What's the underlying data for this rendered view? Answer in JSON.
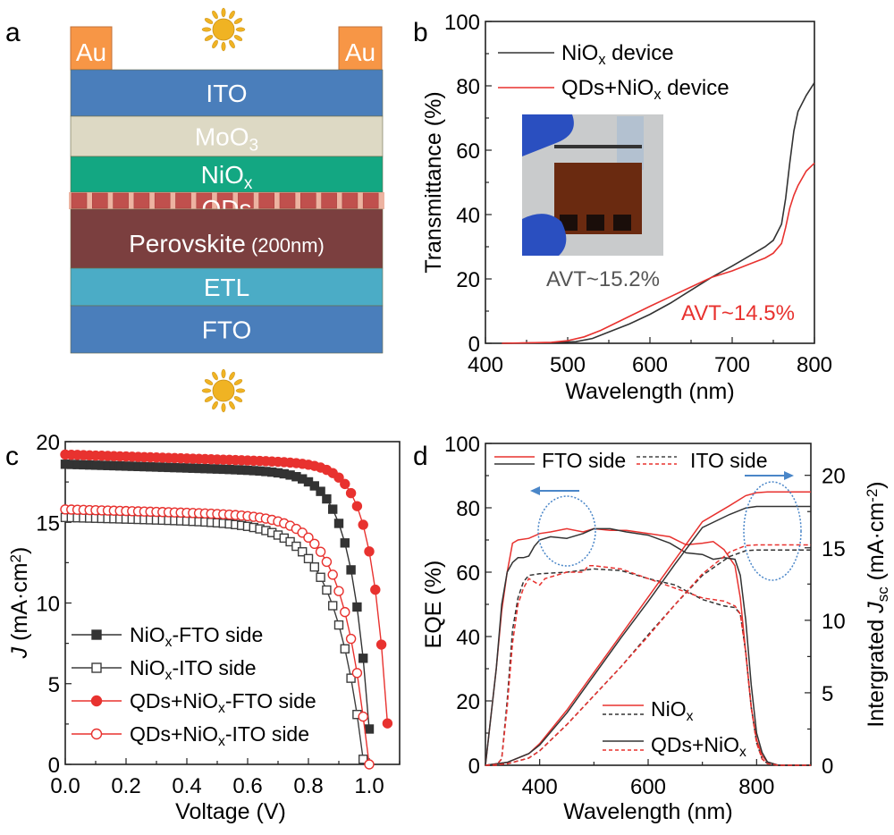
{
  "panel_labels": {
    "a": "a",
    "b": "b",
    "c": "c",
    "d": "d"
  },
  "schematic": {
    "electrode_label": "Au",
    "layers": [
      {
        "name": "ITO",
        "sub": "",
        "color": "#4a7ebb"
      },
      {
        "name": "MoO",
        "sub": "3",
        "color": "#ddd9c4"
      },
      {
        "name": "NiO",
        "sub": "x",
        "color": "#13a782"
      },
      {
        "name": "QDs",
        "sub": "",
        "color": "#c0504d"
      },
      {
        "name": "Perovskite",
        "suffix": "(200nm)",
        "color": "#7b3f3f"
      },
      {
        "name": "ETL",
        "sub": "",
        "color": "#4bacc6"
      },
      {
        "name": "FTO",
        "sub": "",
        "color": "#4a7ebb"
      }
    ],
    "electrode_color": "#f79646",
    "sun_color": "#f0b323"
  },
  "chart_data": [
    {
      "id": "b",
      "type": "line",
      "title": "",
      "xlabel": "Wavelength (nm)",
      "ylabel": "Transmittance (%)",
      "xlim": [
        400,
        800
      ],
      "ylim": [
        0,
        100
      ],
      "xticks": [
        400,
        500,
        600,
        700,
        800
      ],
      "yticks": [
        0,
        20,
        40,
        60,
        80,
        100
      ],
      "grid": false,
      "legend": {
        "placement": "top-left",
        "entries": [
          {
            "label": "NiO",
            "sub": "x",
            "suffix": " device",
            "color": "#333333"
          },
          {
            "label": "QDs+NiO",
            "sub": "x",
            "suffix": " device",
            "color": "#e8322f"
          }
        ]
      },
      "annotations": [
        {
          "text": "AVT~15.2%",
          "color": "#555555"
        },
        {
          "text": "AVT~14.5%",
          "color": "#e8322f"
        }
      ],
      "inset": "photo of semitransparent device held by blue-gloved fingers",
      "series": [
        {
          "name": "NiOx device",
          "color": "#333333",
          "x": [
            420,
            480,
            510,
            530,
            550,
            575,
            600,
            625,
            650,
            675,
            700,
            720,
            740,
            750,
            760,
            765,
            770,
            775,
            780,
            790,
            800
          ],
          "y": [
            0,
            0.2,
            0.5,
            1.5,
            3.5,
            6,
            9,
            12.5,
            16.5,
            20.5,
            24,
            27,
            30,
            32,
            37,
            45,
            56,
            66,
            72,
            77,
            81
          ]
        },
        {
          "name": "QDs+NiOx device",
          "color": "#e8322f",
          "x": [
            420,
            480,
            500,
            520,
            540,
            560,
            580,
            600,
            625,
            650,
            675,
            700,
            720,
            740,
            750,
            760,
            765,
            770,
            775,
            780,
            790,
            800
          ],
          "y": [
            0,
            0.3,
            0.8,
            2,
            4,
            6.5,
            9,
            11.5,
            14.5,
            17.5,
            20.5,
            22.5,
            24.5,
            26.5,
            28,
            31,
            36,
            42,
            46,
            49,
            53.5,
            56
          ]
        }
      ]
    },
    {
      "id": "c",
      "type": "line",
      "title": "",
      "xlabel": "Voltage (V)",
      "ylabel": "J (mA·cm²)",
      "ylabel_parts": {
        "italic": "J",
        "rest": " (mA·cm",
        "sup": "2",
        "end": ")"
      },
      "xlim": [
        0,
        1.1
      ],
      "ylim": [
        0,
        20
      ],
      "xticks": [
        0.0,
        0.2,
        0.4,
        0.6,
        0.8,
        1.0
      ],
      "yticks": [
        0,
        5,
        10,
        15,
        20
      ],
      "grid": false,
      "legend": {
        "placement": "bottom-left"
      },
      "series": [
        {
          "name": "NiOx-FTO side",
          "label": "NiO",
          "sub": "x",
          "suffix": "-FTO side",
          "color": "#333333",
          "marker": "square-filled",
          "jsc": 18.6,
          "voc": 1.01,
          "knee": 0.72,
          "sharp": 5.5
        },
        {
          "name": "NiOx-ITO side",
          "label": "NiO",
          "sub": "x",
          "suffix": "-ITO side",
          "color": "#3d3d3d",
          "marker": "square-open",
          "jsc": 15.3,
          "voc": 0.985,
          "knee": 0.6,
          "sharp": 4.6
        },
        {
          "name": "QDs+NiOx-FTO side",
          "label": "QDs+NiO",
          "sub": "x",
          "suffix": "-FTO side",
          "color": "#e8322f",
          "marker": "circle-filled",
          "jsc": 19.2,
          "voc": 1.07,
          "knee": 0.8,
          "sharp": 5.8
        },
        {
          "name": "QDs+NiOx-ITO side",
          "label": "QDs+NiO",
          "sub": "x",
          "suffix": "-ITO side",
          "color": "#e8322f",
          "marker": "circle-open",
          "jsc": 15.8,
          "voc": 1.0,
          "knee": 0.66,
          "sharp": 4.8
        }
      ]
    },
    {
      "id": "d",
      "type": "line",
      "title": "",
      "xlabel": "Wavelength (nm)",
      "ylabel": "EQE (%)",
      "y2label_parts": {
        "pre": "Intergrated ",
        "italic": "J",
        "sub": "sc",
        "rest": " (mA·cm",
        "sup": "-2",
        "end": ")"
      },
      "xlim": [
        300,
        900
      ],
      "ylim": [
        0,
        100
      ],
      "y2lim": [
        0,
        22.2
      ],
      "xticks": [
        400,
        600,
        800
      ],
      "yticks": [
        0,
        20,
        40,
        60,
        80,
        100
      ],
      "y2ticks": [
        0,
        5,
        10,
        15,
        20
      ],
      "grid": false,
      "legend_top": {
        "placement": "top-left",
        "solid_label": "FTO side",
        "dashed_label": "ITO side"
      },
      "legend_bottom": {
        "placement": "bottom-center",
        "entries": [
          {
            "label": "NiO",
            "sub": "x"
          },
          {
            "label": "QDs+NiO",
            "sub": "x"
          }
        ]
      },
      "arrow_color": "#4a86c8",
      "series": [
        {
          "name": "NiOx FTO side EQE",
          "axis": "left",
          "color": "#e8322f",
          "dash": false,
          "x": [
            300,
            320,
            330,
            340,
            350,
            360,
            380,
            400,
            420,
            450,
            480,
            500,
            530,
            560,
            600,
            640,
            670,
            700,
            720,
            740,
            760,
            770,
            780,
            790,
            800,
            810,
            820,
            840,
            900
          ],
          "y": [
            0,
            30,
            48,
            60,
            69,
            70,
            70.5,
            72,
            72.5,
            73.5,
            72.5,
            73.5,
            73,
            73,
            72,
            71,
            68.5,
            69,
            69.5,
            67,
            62,
            52,
            35,
            18,
            8,
            3,
            1,
            0,
            0
          ]
        },
        {
          "name": "QDs+NiOx FTO side EQE",
          "axis": "left",
          "color": "#333333",
          "dash": false,
          "x": [
            300,
            320,
            330,
            340,
            350,
            360,
            370,
            380,
            390,
            400,
            420,
            450,
            480,
            500,
            530,
            560,
            600,
            640,
            670,
            700,
            720,
            740,
            760,
            770,
            780,
            790,
            800,
            810,
            820,
            840,
            900
          ],
          "y": [
            0,
            30,
            50,
            60,
            63,
            64.5,
            64.5,
            65,
            68,
            70,
            71,
            70.5,
            72,
            73.5,
            73.5,
            72.5,
            71.5,
            69,
            66,
            65.5,
            64,
            64.5,
            64,
            59,
            45,
            25,
            10,
            4,
            1,
            0,
            0
          ]
        },
        {
          "name": "NiOx ITO side EQE",
          "axis": "left",
          "color": "#333333",
          "dash": true,
          "x": [
            300,
            320,
            330,
            340,
            350,
            360,
            370,
            380,
            400,
            450,
            500,
            550,
            600,
            650,
            700,
            740,
            760,
            770,
            780,
            790,
            800,
            810,
            820,
            840,
            900
          ],
          "y": [
            0,
            0,
            2,
            20,
            42,
            52,
            57,
            59,
            59.5,
            60,
            61,
            60.5,
            58,
            56,
            51.5,
            49.5,
            49,
            47,
            35,
            18,
            7,
            2,
            0.5,
            0,
            0
          ]
        },
        {
          "name": "QDs+NiOx ITO side EQE",
          "axis": "left",
          "color": "#e8322f",
          "dash": true,
          "x": [
            300,
            320,
            330,
            340,
            350,
            360,
            370,
            380,
            390,
            400,
            410,
            450,
            480,
            490,
            500,
            550,
            600,
            650,
            700,
            740,
            760,
            770,
            780,
            790,
            800,
            810,
            820,
            840,
            900
          ],
          "y": [
            0,
            0,
            2,
            18,
            38,
            50,
            55,
            58,
            57,
            56,
            58,
            60,
            60,
            62,
            62,
            61,
            58,
            55,
            52,
            51,
            49.5,
            47,
            35,
            18,
            7,
            2,
            0.5,
            0,
            0
          ]
        },
        {
          "name": "NiOx FTO side Jsc",
          "axis": "right",
          "color": "#e8322f",
          "dash": false,
          "x": [
            300,
            340,
            380,
            400,
            450,
            500,
            550,
            600,
            650,
            700,
            750,
            780,
            800,
            820,
            900
          ],
          "y": [
            0,
            0.2,
            0.8,
            1.5,
            3.8,
            6.4,
            9,
            11.6,
            14.2,
            16.8,
            17.9,
            18.6,
            18.8,
            18.85,
            18.85
          ]
        },
        {
          "name": "QDs+NiOx FTO side Jsc",
          "axis": "right",
          "color": "#333333",
          "dash": false,
          "x": [
            300,
            340,
            380,
            400,
            450,
            500,
            550,
            600,
            650,
            700,
            750,
            780,
            800,
            820,
            900
          ],
          "y": [
            0,
            0.2,
            0.8,
            1.4,
            3.6,
            6.2,
            8.8,
            11.3,
            13.9,
            16.4,
            17.3,
            17.75,
            17.85,
            17.85,
            17.85
          ]
        },
        {
          "name": "NiOx ITO side Jsc",
          "axis": "right",
          "color": "#333333",
          "dash": true,
          "x": [
            300,
            340,
            380,
            400,
            450,
            500,
            550,
            600,
            650,
            700,
            750,
            780,
            800,
            820,
            900
          ],
          "y": [
            0,
            0.1,
            0.5,
            1.0,
            2.8,
            4.8,
            6.8,
            9.0,
            11.1,
            13.1,
            14.4,
            14.8,
            14.85,
            14.85,
            14.85
          ]
        },
        {
          "name": "QDs+NiOx ITO side Jsc",
          "axis": "right",
          "color": "#e8322f",
          "dash": true,
          "x": [
            300,
            340,
            380,
            400,
            450,
            500,
            550,
            600,
            650,
            700,
            750,
            780,
            800,
            820,
            900
          ],
          "y": [
            0,
            0.1,
            0.5,
            1.0,
            2.8,
            4.8,
            6.8,
            8.9,
            11.1,
            13.2,
            14.7,
            15.15,
            15.2,
            15.2,
            15.2
          ]
        }
      ]
    }
  ]
}
